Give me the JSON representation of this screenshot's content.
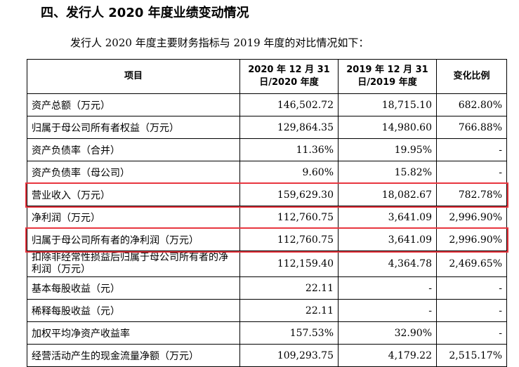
{
  "section_heading": "四、发行人 2020 年度业绩变动情况",
  "intro_text": "发行人 2020 年度主要财务指标与 2019 年度的对比情况如下：",
  "table": {
    "headers": {
      "item": "项目",
      "col2020": "2020 年 12 月 31 日/2020 年度",
      "col2019": "2019 年 12 月 31 日/2019 年度",
      "change": "变化比例"
    },
    "rows": [
      {
        "item": "资产总额（万元）",
        "v2020": "146,502.72",
        "v2019": "18,715.10",
        "change": "682.80%"
      },
      {
        "item": "归属于母公司所有者权益（万元）",
        "v2020": "129,864.35",
        "v2019": "14,980.60",
        "change": "766.88%"
      },
      {
        "item": "资产负债率（合并）",
        "v2020": "11.36%",
        "v2019": "19.95%",
        "change": "-"
      },
      {
        "item": "资产负债率（母公司）",
        "v2020": "9.60%",
        "v2019": "15.82%",
        "change": "-"
      },
      {
        "item": "营业收入（万元）",
        "v2020": "159,629.30",
        "v2019": "18,082.67",
        "change": "782.78%"
      },
      {
        "item": "净利润（万元）",
        "v2020": "112,760.75",
        "v2019": "3,641.09",
        "change": "2,996.90%"
      },
      {
        "item": "归属于母公司所有者的净利润（万元）",
        "v2020": "112,760.75",
        "v2019": "3,641.09",
        "change": "2,996.90%"
      },
      {
        "item": "扣除非经常性损益后归属于母公司所有者的净利润（万元）",
        "v2020": "112,159.40",
        "v2019": "4,364.78",
        "change": "2,469.65%"
      },
      {
        "item": "基本每股收益（元）",
        "v2020": "22.11",
        "v2019": "-",
        "change": "-"
      },
      {
        "item": "稀释每股收益（元）",
        "v2020": "22.11",
        "v2019": "-",
        "change": "-"
      },
      {
        "item": "加权平均净资产收益率",
        "v2020": "157.53%",
        "v2019": "32.90%",
        "change": "-"
      },
      {
        "item": "经营活动产生的现金流量净额（万元）",
        "v2020": "109,293.75",
        "v2019": "4,179.22",
        "change": "2,515.17%"
      }
    ]
  },
  "highlight_color": "#e8363f"
}
